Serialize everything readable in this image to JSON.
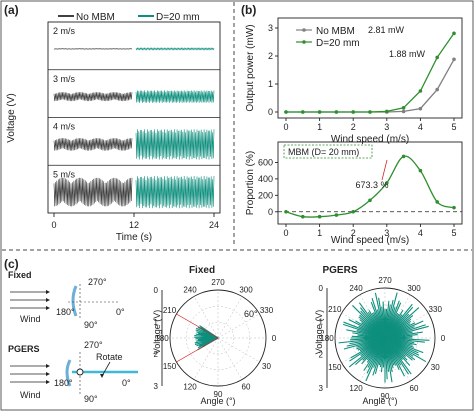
{
  "panels": {
    "a": "(a)",
    "b": "(b)",
    "c": "(c)"
  },
  "colors": {
    "nombm": "#404040",
    "mbm": "#0e8f7e",
    "green": "#2f8f2f",
    "gray": "#808080",
    "red": "#d42020",
    "cyan": "#3fb8d8"
  },
  "chart_data": [
    {
      "type": "line",
      "panel": "a",
      "xlabel": "Time (s)",
      "ylabel": "Voltage (V)",
      "xticks": [
        "0",
        "12",
        "24"
      ],
      "legend": [
        "No MBM",
        "D=20 mm"
      ],
      "rows": [
        {
          "label": "2 m/s",
          "nombm_amp": 0.02,
          "mbm_amp": 0.05
        },
        {
          "label": "3 m/s",
          "nombm_amp": 0.25,
          "mbm_amp": 0.35
        },
        {
          "label": "4 m/s",
          "nombm_amp": 0.35,
          "mbm_amp": 0.85
        },
        {
          "label": "5 m/s",
          "nombm_amp": 0.8,
          "mbm_amp": 0.9
        }
      ]
    },
    {
      "type": "line",
      "panel": "b-top",
      "xlabel": "Wind speed (m/s)",
      "ylabel": "Output power (mW)",
      "xlim": [
        0,
        5
      ],
      "ylim": [
        0,
        3
      ],
      "xticks": [
        "0",
        "1",
        "2",
        "3",
        "4",
        "5"
      ],
      "yticks": [
        "0",
        "1",
        "2",
        "3"
      ],
      "series": [
        {
          "name": "No MBM",
          "x": [
            0,
            0.5,
            1,
            1.5,
            2,
            2.5,
            3,
            3.5,
            4,
            4.5,
            5
          ],
          "y": [
            0,
            0,
            0,
            0,
            0,
            0,
            0,
            0.02,
            0.12,
            0.8,
            1.88
          ]
        },
        {
          "name": "D=20 mm",
          "x": [
            0,
            0.5,
            1,
            1.5,
            2,
            2.5,
            3,
            3.5,
            4,
            4.5,
            5
          ],
          "y": [
            0,
            0,
            0,
            0,
            0,
            0,
            0.02,
            0.15,
            0.75,
            1.95,
            2.81
          ]
        }
      ],
      "annotations": [
        "2.81 mW",
        "1.88 mW"
      ]
    },
    {
      "type": "line",
      "panel": "b-bottom",
      "xlabel": "Wind speed (m/s)",
      "ylabel": "Proportion (%)",
      "xlim": [
        0,
        5
      ],
      "ylim": [
        -100,
        800
      ],
      "xticks": [
        "0",
        "1",
        "2",
        "3",
        "4",
        "5"
      ],
      "yticks": [
        "0",
        "200",
        "400",
        "600"
      ],
      "series": [
        {
          "name": "MBM",
          "x": [
            0,
            0.5,
            1,
            1.5,
            2,
            2.5,
            3,
            3.5,
            4,
            4.5,
            5
          ],
          "y": [
            0,
            -60,
            -60,
            -40,
            0,
            140,
            350,
            673.3,
            500,
            120,
            50
          ]
        }
      ],
      "box_label": "MBM (D= 20 mm)",
      "annotation": "673.3 %"
    },
    {
      "type": "scatter",
      "panel": "c-fixed",
      "title": "Fixed",
      "radial_label": "Voltage (V)",
      "angle_label": "Angle (°)",
      "angle_ticks": [
        "0",
        "30",
        "60",
        "90",
        "120",
        "150",
        "180",
        "210",
        "240",
        "270",
        "300",
        "330"
      ],
      "radial_ticks": [
        "0",
        "1",
        "2",
        "3"
      ],
      "annotation": "60°"
    },
    {
      "type": "scatter",
      "panel": "c-pgers",
      "title": "PGERS",
      "radial_label": "Voltage (V)",
      "angle_label": "Angle (°)",
      "angle_ticks": [
        "0",
        "30",
        "60",
        "90",
        "120",
        "150",
        "180",
        "210",
        "240",
        "270",
        "300",
        "330"
      ],
      "radial_ticks": [
        "0",
        "1",
        "2",
        "3"
      ]
    }
  ],
  "schematic": {
    "fixed_title": "Fixed",
    "pgers_title": "PGERS",
    "wind": "Wind",
    "rotate": "Rotate",
    "deg0": "0°",
    "deg90": "90°",
    "deg180": "180°",
    "deg270": "270°"
  }
}
